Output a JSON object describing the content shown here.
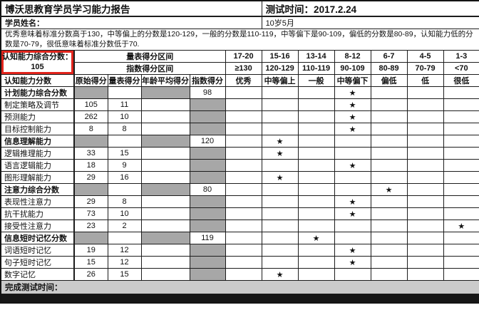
{
  "header": {
    "title": "博沃思教育学员学习能力报告",
    "test_time": "测试时间：2017.2.24",
    "student_name_label": "学员姓名：",
    "student_age": "10岁5月",
    "note": "优秀意味着标准分数高于130，中等偏上的分数是120-129，一般的分数是110-119，中等偏下是90-109，偏低的分数是80-89，认知能力低的分数是70-79，很低意味着标准分数低于70."
  },
  "summary": {
    "label": "认知能力综合分数：",
    "value": "105"
  },
  "band_headers": {
    "scale_band_label": "量表得分区间",
    "index_band_label": "指数得分区间",
    "scale_ranges": [
      "17-20",
      "15-16",
      "13-14",
      "8-12",
      "6-7",
      "4-5",
      "1-3"
    ],
    "index_ranges": [
      "≥130",
      "120-129",
      "110-119",
      "90-109",
      "80-89",
      "70-79",
      "<70"
    ],
    "category_labels": [
      "优秀",
      "中等偏上",
      "一般",
      "中等偏下",
      "偏低",
      "低",
      "很低"
    ]
  },
  "columns": {
    "row_header": "认知能力分数",
    "raw": "原始得分",
    "scale": "量表得分",
    "age_avg": "年龄平均得分",
    "index": "指数得分"
  },
  "rows": [
    {
      "label": "计划能力综合分数",
      "type": "composite",
      "raw": "",
      "scale": "",
      "index": "98",
      "star": 4
    },
    {
      "label": "制定策略及调节",
      "type": "sub",
      "raw": "105",
      "scale": "11",
      "index": "",
      "star": 4
    },
    {
      "label": "预测能力",
      "type": "sub",
      "raw": "262",
      "scale": "10",
      "index": "",
      "star": 4
    },
    {
      "label": "目标控制能力",
      "type": "sub",
      "raw": "8",
      "scale": "8",
      "index": "",
      "star": 4
    },
    {
      "label": "信息理解能力",
      "type": "composite",
      "raw": "",
      "scale": "",
      "index": "120",
      "star": 2
    },
    {
      "label": "逻辑推理能力",
      "type": "sub",
      "raw": "33",
      "scale": "15",
      "index": "",
      "star": 2
    },
    {
      "label": "语言逻辑能力",
      "type": "sub",
      "raw": "18",
      "scale": "9",
      "index": "",
      "star": 4
    },
    {
      "label": "图形理解能力",
      "type": "sub",
      "raw": "29",
      "scale": "16",
      "index": "",
      "star": 2
    },
    {
      "label": "注意力综合分数",
      "type": "composite",
      "raw": "",
      "scale": "",
      "index": "80",
      "star": 5
    },
    {
      "label": "表现性注意力",
      "type": "sub",
      "raw": "29",
      "scale": "8",
      "index": "",
      "star": 4
    },
    {
      "label": "抗干扰能力",
      "type": "sub",
      "raw": "73",
      "scale": "10",
      "index": "",
      "star": 4
    },
    {
      "label": "接受性注意力",
      "type": "sub",
      "raw": "23",
      "scale": "2",
      "index": "",
      "star": 7
    },
    {
      "label": "信息短时记忆分数",
      "type": "composite",
      "raw": "",
      "scale": "",
      "index": "119",
      "star": 3
    },
    {
      "label": "词语短时记忆",
      "type": "sub",
      "raw": "19",
      "scale": "12",
      "index": "",
      "star": 4
    },
    {
      "label": "句子短时记忆",
      "type": "sub",
      "raw": "15",
      "scale": "12",
      "index": "",
      "star": 4
    },
    {
      "label": "数字记忆",
      "type": "sub",
      "raw": "26",
      "scale": "15",
      "index": "",
      "star": 2
    }
  ],
  "footer": {
    "label": "完成测试时间："
  },
  "glyphs": {
    "star": "★"
  },
  "colors": {
    "gray_cell": "#a7a7a7",
    "red_box": "#e3251d",
    "footer_bar": "#cbcbcb",
    "bottom_band": "#161616"
  }
}
